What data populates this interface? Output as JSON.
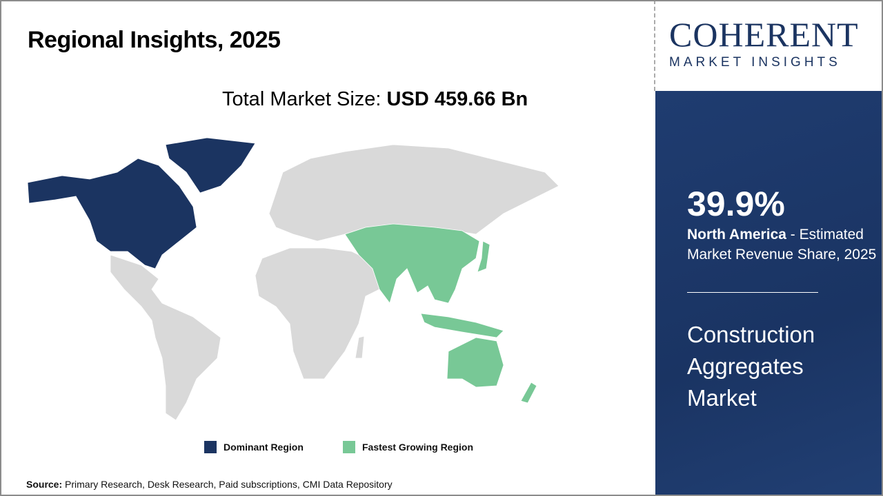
{
  "title": "Regional Insights, 2025",
  "total_market": {
    "label": "Total Market Size:",
    "value": "USD 459.66 Bn"
  },
  "logo": {
    "big": "COHERENT",
    "small": "MARKET INSIGHTS"
  },
  "panel": {
    "percent": "39.9%",
    "region": "North America",
    "desc": " - Estimated Market Revenue Share, 2025",
    "market_name": "Construction Aggregates Market"
  },
  "legend": [
    {
      "label": "Dominant Region",
      "color": "#1b3461"
    },
    {
      "label": "Fastest Growing Region",
      "color": "#78c896"
    }
  ],
  "source": {
    "label": "Source:",
    "text": " Primary Research, Desk Research, Paid subscriptions, CMI Data Repository"
  },
  "colors": {
    "dominant": "#1b3461",
    "fastest": "#78c896",
    "other": "#d9d9d9"
  }
}
